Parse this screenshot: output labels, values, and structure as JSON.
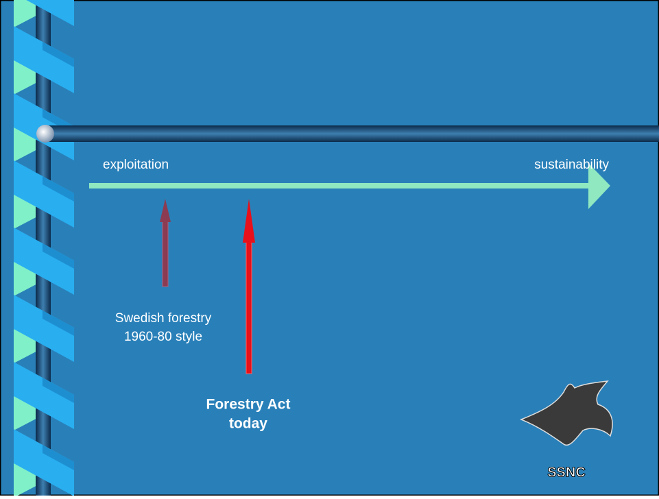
{
  "slide": {
    "scale_left": "exploitation",
    "scale_right": "sustainability",
    "marker_old": [
      "Swedish forestry",
      "1960-80 style"
    ],
    "marker_now": [
      "Forestry Act",
      "today"
    ],
    "logo": "SSNC"
  }
}
